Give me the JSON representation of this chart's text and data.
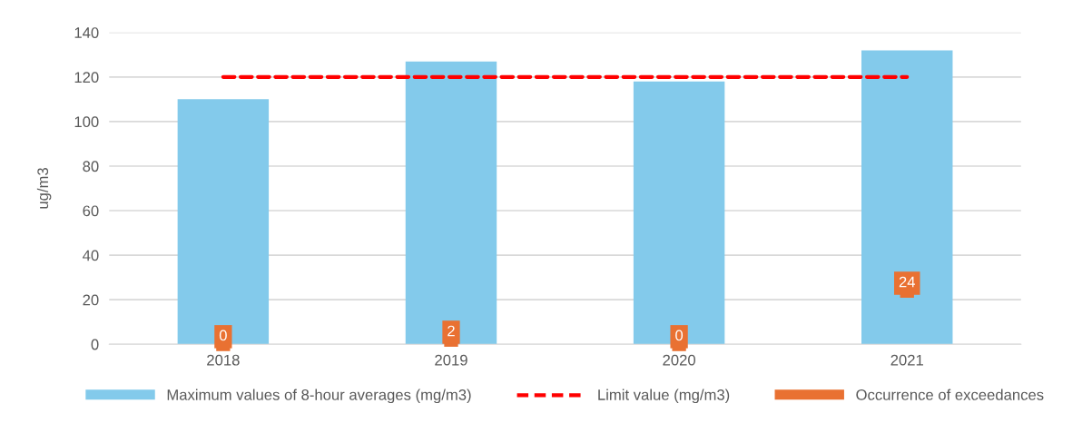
{
  "chart_data": {
    "type": "bar",
    "ylabel": "ug/m3",
    "categories": [
      "2018",
      "2019",
      "2020",
      "2021"
    ],
    "series": [
      {
        "name": "Maximum values of 8-hour averages (mg/m3)",
        "color": "#83caeb",
        "values": [
          110,
          127,
          118,
          132
        ]
      },
      {
        "name": "Limit value (mg/m3)",
        "type": "line",
        "line_style": "dashed",
        "color": "#ff0000",
        "values": [
          120,
          120,
          120,
          120
        ]
      },
      {
        "name": "Occurrence of exceedances",
        "type": "scatter",
        "marker": "square",
        "data_labels": true,
        "color": "#e97132",
        "values": [
          0,
          2,
          0,
          24
        ]
      }
    ],
    "ylim": [
      0,
      140
    ],
    "yticks": [
      0,
      20,
      40,
      60,
      80,
      100,
      120,
      140
    ],
    "grid": "y",
    "legend": "bottom"
  }
}
